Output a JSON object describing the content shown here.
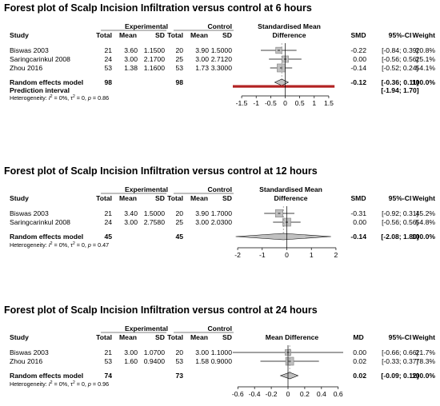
{
  "chart_data": [
    {
      "type": "forest",
      "title": "Forest plot of Scalp Incision Infiltration versus control at 6 hours",
      "group_labels": {
        "experimental": "Experimental",
        "control": "Control"
      },
      "columns": {
        "study": "Study",
        "total_e": "Total",
        "mean_e": "Mean",
        "sd_e": "SD",
        "total_c": "Total",
        "mean_c": "Mean",
        "sd_c": "SD",
        "effect_line1": "Standardised Mean",
        "effect_line2": "Difference",
        "measure": "SMD",
        "ci": "95%-CI",
        "weight": "Weight"
      },
      "studies": [
        {
          "name": "Biswas 2003",
          "n_e": "21",
          "mean_e": "3.60",
          "sd_e": "1.1500",
          "n_c": "20",
          "mean_c": "3.90",
          "sd_c": "1.5000",
          "est": -0.22,
          "lo": -0.84,
          "hi": 0.39,
          "est_text": "-0.22",
          "ci_text": "[-0.84; 0.39]",
          "weight": "20.8%"
        },
        {
          "name": "Saringcarinkul 2008",
          "n_e": "24",
          "mean_e": "3.00",
          "sd_e": "2.1700",
          "n_c": "25",
          "mean_c": "3.00",
          "sd_c": "2.7120",
          "est": 0.0,
          "lo": -0.56,
          "hi": 0.56,
          "est_text": "0.00",
          "ci_text": "[-0.56; 0.56]",
          "weight": "25.1%"
        },
        {
          "name": "Zhou 2016",
          "n_e": "53",
          "mean_e": "1.38",
          "sd_e": "1.1600",
          "n_c": "53",
          "mean_c": "1.73",
          "sd_c": "3.3000",
          "est": -0.14,
          "lo": -0.52,
          "hi": 0.24,
          "est_text": "-0.14",
          "ci_text": "[-0.52; 0.24]",
          "weight": "54.1%"
        }
      ],
      "pooled": {
        "label": "Random effects model",
        "n_e": "98",
        "n_c": "98",
        "est": -0.12,
        "lo": -0.36,
        "hi": 0.11,
        "est_text": "-0.12",
        "ci_text": "[-0.36; 0.11]",
        "weight": "100.0%"
      },
      "prediction": {
        "label": "Prediction interval",
        "lo": -1.94,
        "hi": 1.7,
        "ci_text": "[-1.94; 1.70]"
      },
      "heterogeneity": {
        "prefix": "Heterogeneity: ",
        "i2": "= 0%, ",
        "tau2": "= 0, ",
        "p": "= 0.86"
      },
      "ticks": [
        "-1.5",
        "-1",
        "-0.5",
        "0",
        "0.5",
        "1",
        "1.5"
      ],
      "tick_values": [
        -1.5,
        -1,
        -0.5,
        0,
        0.5,
        1,
        1.5
      ],
      "xlim": [
        -1.75,
        1.75
      ]
    },
    {
      "type": "forest",
      "title": "Forest plot of Scalp Incision Infiltration versus control at 12 hours",
      "group_labels": {
        "experimental": "Experimental",
        "control": "Control"
      },
      "columns": {
        "study": "Study",
        "total_e": "Total",
        "mean_e": "Mean",
        "sd_e": "SD",
        "total_c": "Total",
        "mean_c": "Mean",
        "sd_c": "SD",
        "effect_line1": "Standardised Mean",
        "effect_line2": "Difference",
        "measure": "SMD",
        "ci": "95%-CI",
        "weight": "Weight"
      },
      "studies": [
        {
          "name": "Biswas 2003",
          "n_e": "21",
          "mean_e": "3.40",
          "sd_e": "1.5000",
          "n_c": "20",
          "mean_c": "3.90",
          "sd_c": "1.7000",
          "est": -0.31,
          "lo": -0.92,
          "hi": 0.31,
          "est_text": "-0.31",
          "ci_text": "[-0.92; 0.31]",
          "weight": "45.2%"
        },
        {
          "name": "Saringcarinkul 2008",
          "n_e": "24",
          "mean_e": "3.00",
          "sd_e": "2.7580",
          "n_c": "25",
          "mean_c": "3.00",
          "sd_c": "2.0300",
          "est": 0.0,
          "lo": -0.56,
          "hi": 0.56,
          "est_text": "0.00",
          "ci_text": "[-0.56; 0.56]",
          "weight": "54.8%"
        }
      ],
      "pooled": {
        "label": "Random effects model",
        "n_e": "45",
        "n_c": "45",
        "est": -0.14,
        "lo": -2.08,
        "hi": 1.8,
        "est_text": "-0.14",
        "ci_text": "[-2.08; 1.80]",
        "weight": "100.0%"
      },
      "heterogeneity": {
        "prefix": "Heterogeneity: ",
        "i2": "= 0%, ",
        "tau2": "= 0, ",
        "p": "= 0.47"
      },
      "ticks": [
        "-2",
        "-1",
        "0",
        "1",
        "2"
      ],
      "tick_values": [
        -2,
        -1,
        0,
        1,
        2
      ],
      "xlim": [
        -2.1,
        2.1
      ]
    },
    {
      "type": "forest",
      "title": "Forest plot of Scalp Incision Infiltration versus control at 24 hours",
      "group_labels": {
        "experimental": "Experimental",
        "control": "Control"
      },
      "columns": {
        "study": "Study",
        "total_e": "Total",
        "mean_e": "Mean",
        "sd_e": "SD",
        "total_c": "Total",
        "mean_c": "Mean",
        "sd_c": "SD",
        "effect_line1": "Mean Difference",
        "effect_line2": "",
        "measure": "MD",
        "ci": "95%-CI",
        "weight": "Weight"
      },
      "studies": [
        {
          "name": "Biswas 2003",
          "n_e": "21",
          "mean_e": "3.00",
          "sd_e": "1.0700",
          "n_c": "20",
          "mean_c": "3.00",
          "sd_c": "1.1000",
          "est": 0.0,
          "lo": -0.66,
          "hi": 0.66,
          "est_text": "0.00",
          "ci_text": "[-0.66; 0.66]",
          "weight": "21.7%"
        },
        {
          "name": "Zhou 2016",
          "n_e": "53",
          "mean_e": "1.60",
          "sd_e": "0.9400",
          "n_c": "53",
          "mean_c": "1.58",
          "sd_c": "0.9000",
          "est": 0.02,
          "lo": -0.33,
          "hi": 0.37,
          "est_text": "0.02",
          "ci_text": "[-0.33; 0.37]",
          "weight": "78.3%"
        }
      ],
      "pooled": {
        "label": "Random effects model",
        "n_e": "74",
        "n_c": "73",
        "est": 0.02,
        "lo": -0.09,
        "hi": 0.12,
        "est_text": "0.02",
        "ci_text": "[-0.09; 0.12]",
        "weight": "100.0%"
      },
      "heterogeneity": {
        "prefix": "Heterogeneity: ",
        "i2": "= 0%, ",
        "tau2": "= 0, ",
        "p": "= 0.96"
      },
      "ticks": [
        "-0.6",
        "-0.4",
        "-0.2",
        "0",
        "0.2",
        "0.4",
        "0.6"
      ],
      "tick_values": [
        -0.6,
        -0.4,
        -0.2,
        0,
        0.2,
        0.4,
        0.6
      ],
      "xlim": [
        -0.66,
        0.66
      ]
    }
  ],
  "colors": {
    "box": "#c0c0c0",
    "box_stroke": "#808080",
    "prediction": "#b22222",
    "line": "#000000"
  }
}
